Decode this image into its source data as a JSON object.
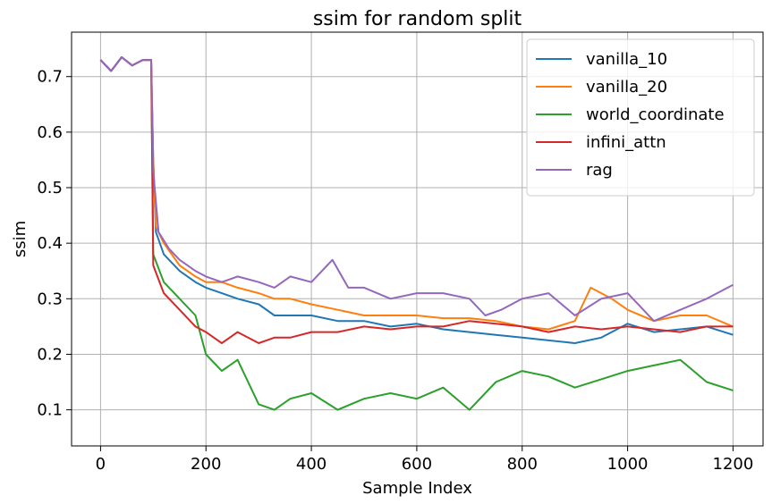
{
  "chart_data": {
    "type": "line",
    "title": "ssim for random split",
    "xlabel": "Sample Index",
    "ylabel": "ssim",
    "xlim": [
      -55,
      1257
    ],
    "ylim": [
      0.035,
      0.78
    ],
    "xticks": [
      0,
      200,
      400,
      600,
      800,
      1000,
      1200
    ],
    "yticks": [
      0.1,
      0.2,
      0.3,
      0.4,
      0.5,
      0.6,
      0.7
    ],
    "xtick_labels": [
      "0",
      "200",
      "400",
      "600",
      "800",
      "1000",
      "1200"
    ],
    "ytick_labels": [
      "0.1",
      "0.2",
      "0.3",
      "0.4",
      "0.5",
      "0.6",
      "0.7"
    ],
    "grid": true,
    "legend_position": "top-right",
    "series": [
      {
        "name": "vanilla_10",
        "color": "#1f77b4",
        "points": [
          [
            0,
            0.73
          ],
          [
            20,
            0.71
          ],
          [
            40,
            0.735
          ],
          [
            60,
            0.72
          ],
          [
            80,
            0.73
          ],
          [
            96,
            0.73
          ],
          [
            100,
            0.55
          ],
          [
            105,
            0.42
          ],
          [
            120,
            0.38
          ],
          [
            150,
            0.35
          ],
          [
            180,
            0.33
          ],
          [
            200,
            0.32
          ],
          [
            230,
            0.31
          ],
          [
            260,
            0.3
          ],
          [
            300,
            0.29
          ],
          [
            330,
            0.27
          ],
          [
            360,
            0.27
          ],
          [
            400,
            0.27
          ],
          [
            450,
            0.26
          ],
          [
            500,
            0.26
          ],
          [
            550,
            0.25
          ],
          [
            600,
            0.255
          ],
          [
            650,
            0.245
          ],
          [
            700,
            0.24
          ],
          [
            750,
            0.235
          ],
          [
            800,
            0.23
          ],
          [
            850,
            0.225
          ],
          [
            900,
            0.22
          ],
          [
            950,
            0.23
          ],
          [
            1000,
            0.255
          ],
          [
            1050,
            0.24
          ],
          [
            1100,
            0.245
          ],
          [
            1150,
            0.25
          ],
          [
            1200,
            0.235
          ]
        ]
      },
      {
        "name": "vanilla_20",
        "color": "#ff7f0e",
        "points": [
          [
            0,
            0.73
          ],
          [
            20,
            0.71
          ],
          [
            40,
            0.735
          ],
          [
            60,
            0.72
          ],
          [
            80,
            0.73
          ],
          [
            96,
            0.73
          ],
          [
            100,
            0.55
          ],
          [
            105,
            0.43
          ],
          [
            120,
            0.4
          ],
          [
            150,
            0.36
          ],
          [
            180,
            0.34
          ],
          [
            200,
            0.33
          ],
          [
            230,
            0.33
          ],
          [
            260,
            0.32
          ],
          [
            300,
            0.31
          ],
          [
            330,
            0.3
          ],
          [
            360,
            0.3
          ],
          [
            400,
            0.29
          ],
          [
            450,
            0.28
          ],
          [
            500,
            0.27
          ],
          [
            550,
            0.27
          ],
          [
            600,
            0.27
          ],
          [
            650,
            0.265
          ],
          [
            700,
            0.265
          ],
          [
            750,
            0.26
          ],
          [
            800,
            0.25
          ],
          [
            850,
            0.245
          ],
          [
            900,
            0.26
          ],
          [
            930,
            0.32
          ],
          [
            970,
            0.3
          ],
          [
            1000,
            0.28
          ],
          [
            1050,
            0.26
          ],
          [
            1100,
            0.27
          ],
          [
            1150,
            0.27
          ],
          [
            1200,
            0.25
          ]
        ]
      },
      {
        "name": "world_coordinate",
        "color": "#2ca02c",
        "points": [
          [
            0,
            0.73
          ],
          [
            20,
            0.71
          ],
          [
            40,
            0.735
          ],
          [
            60,
            0.72
          ],
          [
            80,
            0.73
          ],
          [
            96,
            0.73
          ],
          [
            100,
            0.38
          ],
          [
            120,
            0.33
          ],
          [
            150,
            0.3
          ],
          [
            180,
            0.27
          ],
          [
            200,
            0.2
          ],
          [
            230,
            0.17
          ],
          [
            260,
            0.19
          ],
          [
            300,
            0.11
          ],
          [
            330,
            0.1
          ],
          [
            360,
            0.12
          ],
          [
            400,
            0.13
          ],
          [
            450,
            0.1
          ],
          [
            500,
            0.12
          ],
          [
            550,
            0.13
          ],
          [
            600,
            0.12
          ],
          [
            650,
            0.14
          ],
          [
            700,
            0.1
          ],
          [
            750,
            0.15
          ],
          [
            800,
            0.17
          ],
          [
            850,
            0.16
          ],
          [
            900,
            0.14
          ],
          [
            950,
            0.155
          ],
          [
            1000,
            0.17
          ],
          [
            1050,
            0.18
          ],
          [
            1100,
            0.19
          ],
          [
            1150,
            0.15
          ],
          [
            1200,
            0.135
          ]
        ]
      },
      {
        "name": "infini_attn",
        "color": "#d62728",
        "points": [
          [
            0,
            0.73
          ],
          [
            20,
            0.71
          ],
          [
            40,
            0.735
          ],
          [
            60,
            0.72
          ],
          [
            80,
            0.73
          ],
          [
            96,
            0.73
          ],
          [
            100,
            0.36
          ],
          [
            120,
            0.31
          ],
          [
            150,
            0.28
          ],
          [
            180,
            0.25
          ],
          [
            200,
            0.24
          ],
          [
            230,
            0.22
          ],
          [
            260,
            0.24
          ],
          [
            300,
            0.22
          ],
          [
            330,
            0.23
          ],
          [
            360,
            0.23
          ],
          [
            400,
            0.24
          ],
          [
            450,
            0.24
          ],
          [
            500,
            0.25
          ],
          [
            550,
            0.245
          ],
          [
            600,
            0.25
          ],
          [
            650,
            0.25
          ],
          [
            700,
            0.26
          ],
          [
            750,
            0.255
          ],
          [
            800,
            0.25
          ],
          [
            850,
            0.24
          ],
          [
            900,
            0.25
          ],
          [
            950,
            0.245
          ],
          [
            1000,
            0.25
          ],
          [
            1050,
            0.245
          ],
          [
            1100,
            0.24
          ],
          [
            1150,
            0.25
          ],
          [
            1200,
            0.25
          ]
        ]
      },
      {
        "name": "rag",
        "color": "#9467bd",
        "points": [
          [
            0,
            0.73
          ],
          [
            20,
            0.71
          ],
          [
            40,
            0.735
          ],
          [
            60,
            0.72
          ],
          [
            80,
            0.73
          ],
          [
            96,
            0.73
          ],
          [
            100,
            0.53
          ],
          [
            110,
            0.42
          ],
          [
            130,
            0.39
          ],
          [
            150,
            0.37
          ],
          [
            180,
            0.35
          ],
          [
            200,
            0.34
          ],
          [
            230,
            0.33
          ],
          [
            260,
            0.34
          ],
          [
            300,
            0.33
          ],
          [
            330,
            0.32
          ],
          [
            360,
            0.34
          ],
          [
            400,
            0.33
          ],
          [
            440,
            0.37
          ],
          [
            470,
            0.32
          ],
          [
            500,
            0.32
          ],
          [
            550,
            0.3
          ],
          [
            600,
            0.31
          ],
          [
            650,
            0.31
          ],
          [
            700,
            0.3
          ],
          [
            730,
            0.27
          ],
          [
            760,
            0.28
          ],
          [
            800,
            0.3
          ],
          [
            850,
            0.31
          ],
          [
            900,
            0.27
          ],
          [
            950,
            0.3
          ],
          [
            1000,
            0.31
          ],
          [
            1050,
            0.26
          ],
          [
            1100,
            0.28
          ],
          [
            1150,
            0.3
          ],
          [
            1200,
            0.325
          ]
        ]
      }
    ]
  }
}
